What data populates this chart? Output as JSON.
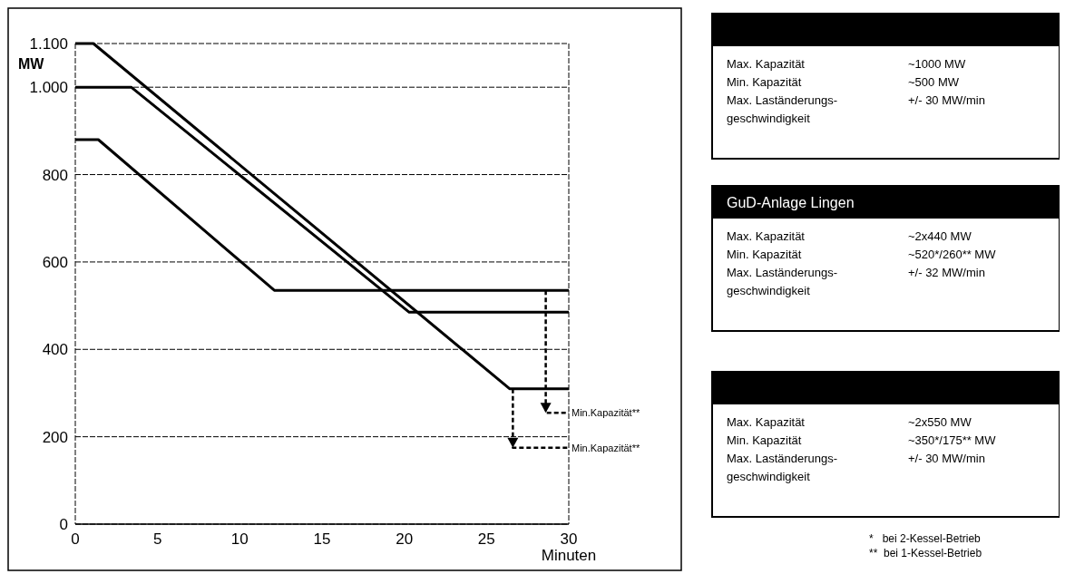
{
  "chart_data": [
    {
      "type": "line",
      "xlabel": "Minuten",
      "ylabel": "MW",
      "xlim": [
        0,
        30
      ],
      "xticks": [
        0,
        5,
        10,
        15,
        20,
        25,
        30
      ],
      "ylim": [
        0,
        1100
      ],
      "yticks": [
        0,
        200,
        400,
        600,
        800,
        {
          "value": 1000,
          "label": "1.000"
        },
        {
          "value": 1100,
          "label": "1.100"
        }
      ],
      "grid": "y",
      "series": [
        {
          "color": "#000000",
          "x": [
            0,
            1.1,
            26.4,
            30
          ],
          "values": [
            1100,
            1100,
            310,
            310
          ]
        },
        {
          "color": "#000000",
          "x": [
            0,
            3.4,
            20.3,
            30
          ],
          "values": [
            1000,
            1000,
            485,
            485
          ]
        },
        {
          "color": "#000000",
          "x": [
            0,
            1.4,
            12.1,
            30
          ],
          "values": [
            880,
            880,
            535,
            535
          ]
        },
        {
          "color": "#000000",
          "x": [
            28.6,
            28.6,
            30
          ],
          "values": [
            535,
            255,
            255
          ],
          "line_style": "dashed"
        },
        {
          "color": "#000000",
          "x": [
            26.6,
            26.6,
            30
          ],
          "values": [
            310,
            175,
            175
          ],
          "line_style": "dashed"
        }
      ],
      "annotations": [
        {
          "text": "Min.Kapazität**",
          "x": 30,
          "y": 255
        },
        {
          "text": "Min.Kapazität**",
          "x": 30,
          "y": 175
        }
      ]
    },
    {
      "type": "other",
      "annotations": [
        "Max. Kapazität",
        "~1000 MW",
        "Min. Kapazität",
        "~500 MW",
        "Max. Laständerungs-\ngeschwindigkeit",
        "+/- 30 MW/min"
      ]
    },
    {
      "type": "other",
      "title": "GuD-Anlage Lingen",
      "annotations": [
        "Max. Kapazität",
        "~2x440 MW",
        "Min.  Kapazität",
        "~520*/260** MW",
        "Max. Laständerungs-\ngeschwindigkeit",
        "+/- 32 MW/min"
      ]
    },
    {
      "type": "other",
      "annotations": [
        "Max. Kapazität",
        "~2x550 MW",
        "Min. Kapazität",
        "~350*/175** MW",
        "Max. Laständerungs-\ngeschwindigkeit",
        "+/- 30 MW/min"
      ]
    },
    {
      "type": "other",
      "annotations": [
        "*   bei 2-Kessel-Betrieb",
        "**  bei 1-Kessel-Betrieb"
      ]
    }
  ]
}
